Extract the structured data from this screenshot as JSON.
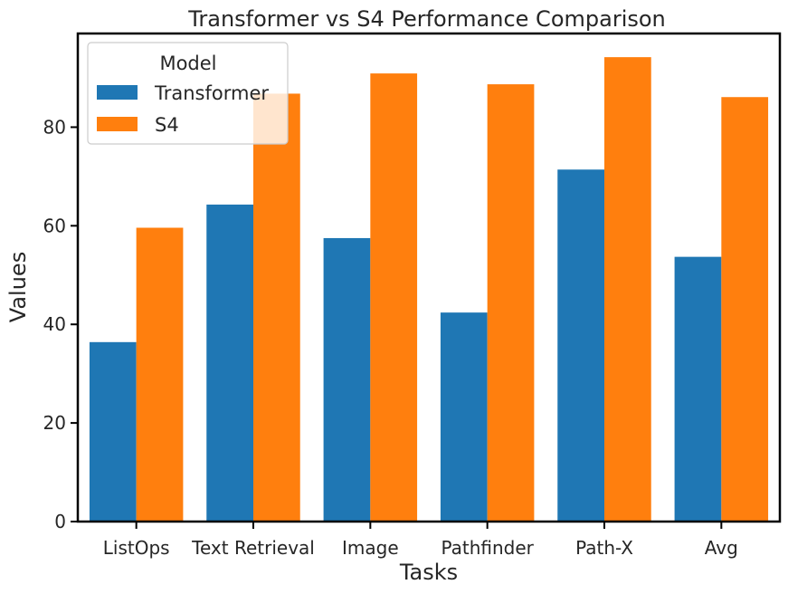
{
  "chart_data": {
    "type": "bar",
    "title": "Transformer vs S4 Performance Comparison",
    "xlabel": "Tasks",
    "ylabel": "Values",
    "categories": [
      "ListOps",
      "Text Retrieval",
      "Image",
      "Pathfinder",
      "Path-X",
      "Avg"
    ],
    "series": [
      {
        "name": "Transformer",
        "color": "#1f77b4",
        "values": [
          36.4,
          64.3,
          57.5,
          42.4,
          71.4,
          53.7
        ]
      },
      {
        "name": "S4",
        "color": "#ff7f0e",
        "values": [
          59.6,
          86.8,
          90.9,
          88.7,
          94.2,
          86.1
        ]
      }
    ],
    "ylim": [
      0,
      99
    ],
    "yticks": [
      0,
      20,
      40,
      60,
      80
    ],
    "legend": {
      "title": "Model",
      "placement": "top-left"
    },
    "grid": false
  }
}
